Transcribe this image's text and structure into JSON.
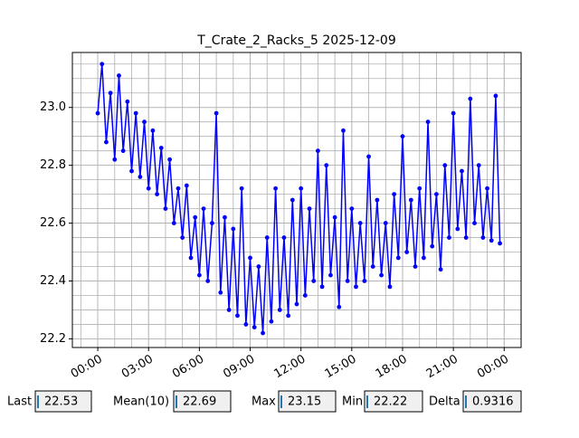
{
  "chart_data": {
    "type": "line",
    "title": "T_Crate_2_Racks_5 2025-12-09",
    "x": [
      0,
      0.25,
      0.5,
      0.75,
      1,
      1.25,
      1.5,
      1.75,
      2,
      2.25,
      2.5,
      2.75,
      3,
      3.25,
      3.5,
      3.75,
      4,
      4.25,
      4.5,
      4.75,
      5,
      5.25,
      5.5,
      5.75,
      6,
      6.25,
      6.5,
      6.75,
      7,
      7.25,
      7.5,
      7.75,
      8,
      8.25,
      8.5,
      8.75,
      9,
      9.25,
      9.5,
      9.75,
      10,
      10.25,
      10.5,
      10.75,
      11,
      11.25,
      11.5,
      11.75,
      12,
      12.25,
      12.5,
      12.75,
      13,
      13.25,
      13.5,
      13.75,
      14,
      14.25,
      14.5,
      14.75,
      15,
      15.25,
      15.5,
      15.75,
      16,
      16.25,
      16.5,
      16.75,
      17,
      17.25,
      17.5,
      17.75,
      18,
      18.25,
      18.5,
      18.75,
      19,
      19.25,
      19.5,
      19.75,
      20,
      20.25,
      20.5,
      20.75,
      21,
      21.25,
      21.5,
      21.75,
      22,
      22.25,
      22.5,
      22.75,
      23,
      23.25,
      23.5,
      23.75
    ],
    "series": [
      {
        "color": "#0000ff",
        "values": [
          22.98,
          23.15,
          22.88,
          23.05,
          22.82,
          23.11,
          22.85,
          23.02,
          22.78,
          22.98,
          22.76,
          22.95,
          22.72,
          22.92,
          22.7,
          22.86,
          22.65,
          22.82,
          22.6,
          22.72,
          22.55,
          22.73,
          22.48,
          22.62,
          22.42,
          22.65,
          22.4,
          22.6,
          22.98,
          22.36,
          22.62,
          22.3,
          22.58,
          22.28,
          22.72,
          22.25,
          22.48,
          22.24,
          22.45,
          22.22,
          22.55,
          22.26,
          22.72,
          22.3,
          22.55,
          22.28,
          22.68,
          22.32,
          22.72,
          22.35,
          22.65,
          22.4,
          22.85,
          22.38,
          22.8,
          22.42,
          22.62,
          22.31,
          22.92,
          22.4,
          22.65,
          22.38,
          22.6,
          22.4,
          22.83,
          22.45,
          22.68,
          22.42,
          22.6,
          22.38,
          22.7,
          22.48,
          22.9,
          22.5,
          22.68,
          22.45,
          22.72,
          22.48,
          22.95,
          22.52,
          22.7,
          22.44,
          22.8,
          22.55,
          22.98,
          22.58,
          22.78,
          22.55,
          23.03,
          22.6,
          22.8,
          22.55,
          22.72,
          22.54,
          23.04,
          22.53
        ]
      }
    ],
    "xlim": [
      -1.5,
      25
    ],
    "ylim": [
      22.17,
      23.19
    ],
    "xticks": [
      {
        "value": 0,
        "label": "00:00"
      },
      {
        "value": 3,
        "label": "03:00"
      },
      {
        "value": 6,
        "label": "06:00"
      },
      {
        "value": 9,
        "label": "09:00"
      },
      {
        "value": 12,
        "label": "12:00"
      },
      {
        "value": 15,
        "label": "15:00"
      },
      {
        "value": 18,
        "label": "18:00"
      },
      {
        "value": 21,
        "label": "21:00"
      },
      {
        "value": 24,
        "label": "00:00"
      }
    ],
    "yticks": [
      {
        "value": 22.2,
        "label": "22.2"
      },
      {
        "value": 22.4,
        "label": "22.4"
      },
      {
        "value": 22.6,
        "label": "22.6"
      },
      {
        "value": 22.8,
        "label": "22.8"
      },
      {
        "value": 23.0,
        "label": "23.0"
      }
    ],
    "grid": true,
    "minor_grid": true
  },
  "stats": [
    {
      "label": "Last",
      "value": 22.53
    },
    {
      "label": "Mean(10)",
      "value": 22.69
    },
    {
      "label": "Max",
      "value": 23.15
    },
    {
      "label": "Min",
      "value": 22.22
    },
    {
      "label": "Delta",
      "value": 0.9316
    }
  ]
}
